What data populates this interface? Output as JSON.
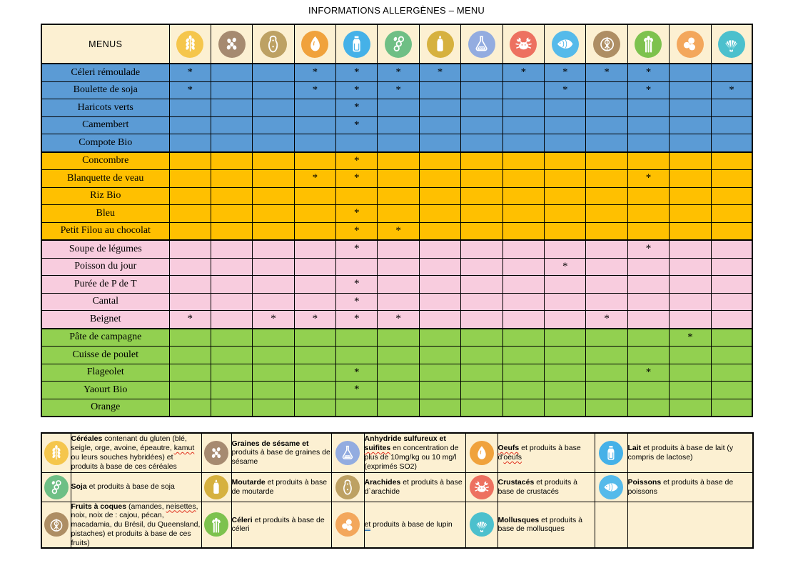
{
  "title": "INFORMATIONS ALLERGÈNES – MENU",
  "table": {
    "header_label": "MENUS",
    "mark_symbol": "*",
    "group_colors": {
      "blue": "#5B9BD5",
      "orange": "#FFC000",
      "pink": "#F8CCDE",
      "green": "#92D050"
    },
    "header_background": "#FCF0D2",
    "columns": [
      {
        "icon": "wheat-icon",
        "allergen": "gluten",
        "color": "#F5C64C"
      },
      {
        "icon": "sesame-icon",
        "allergen": "sesame",
        "color": "#A68A70"
      },
      {
        "icon": "peanut-icon",
        "allergen": "arachides",
        "color": "#BDA163"
      },
      {
        "icon": "egg-icon",
        "allergen": "oeufs",
        "color": "#F0A23C"
      },
      {
        "icon": "milk-bottle-icon",
        "allergen": "lait",
        "color": "#45B1E8"
      },
      {
        "icon": "soy-icon",
        "allergen": "soja",
        "color": "#6FBF85"
      },
      {
        "icon": "mustard-bottle-icon",
        "allergen": "moutarde",
        "color": "#D6B13F"
      },
      {
        "icon": "flask-icon",
        "allergen": "sulfites",
        "color": "#93ACE0"
      },
      {
        "icon": "crab-icon",
        "allergen": "crustaces",
        "color": "#ED7160"
      },
      {
        "icon": "fish-icon",
        "allergen": "poissons",
        "color": "#55BAEA"
      },
      {
        "icon": "walnut-icon",
        "allergen": "fruits-a-coques",
        "color": "#AE8E64"
      },
      {
        "icon": "celery-icon",
        "allergen": "celeri",
        "color": "#7DC24E"
      },
      {
        "icon": "lupin-icon",
        "allergen": "lupin",
        "color": "#F3A75C"
      },
      {
        "icon": "shell-icon",
        "allergen": "mollusques",
        "color": "#4CC0CD"
      }
    ],
    "rows": [
      {
        "label": "Céleri rémoulade",
        "group": "blue",
        "marks": [
          1,
          4,
          5,
          6,
          7,
          9,
          10,
          11,
          12
        ]
      },
      {
        "label": "Boulette de soja",
        "group": "blue",
        "marks": [
          1,
          4,
          5,
          6,
          10,
          12,
          14
        ]
      },
      {
        "label": "Haricots verts",
        "group": "blue",
        "marks": [
          5
        ]
      },
      {
        "label": "Camembert",
        "group": "blue",
        "marks": [
          5
        ]
      },
      {
        "label": "Compote Bio",
        "group": "blue",
        "marks": []
      },
      {
        "label": "Concombre",
        "group": "orange",
        "marks": [
          5
        ]
      },
      {
        "label": "Blanquette de veau",
        "group": "orange",
        "marks": [
          4,
          5,
          12
        ]
      },
      {
        "label": "Riz Bio",
        "group": "orange",
        "marks": []
      },
      {
        "label": "Bleu",
        "group": "orange",
        "marks": [
          5
        ]
      },
      {
        "label": "Petit Filou au chocolat",
        "group": "orange",
        "marks": [
          5,
          6
        ]
      },
      {
        "label": "Soupe de légumes",
        "group": "pink",
        "marks": [
          5,
          12
        ]
      },
      {
        "label": "Poisson du jour",
        "group": "pink",
        "marks": [
          10
        ]
      },
      {
        "label": "Purée de P de T",
        "group": "pink",
        "marks": [
          5
        ]
      },
      {
        "label": "Cantal",
        "group": "pink",
        "marks": [
          5
        ]
      },
      {
        "label": "Beignet",
        "group": "pink",
        "marks": [
          1,
          3,
          4,
          5,
          6,
          11
        ]
      },
      {
        "label": "Pâte de campagne",
        "group": "green",
        "marks": [
          13
        ]
      },
      {
        "label": "Cuisse de poulet",
        "group": "green",
        "marks": []
      },
      {
        "label": "Flageolet",
        "group": "green",
        "marks": [
          5,
          12
        ]
      },
      {
        "label": "Yaourt Bio",
        "group": "green",
        "marks": [
          5
        ]
      },
      {
        "label": "Orange",
        "group": "green",
        "marks": []
      }
    ]
  },
  "legend": {
    "rows": [
      [
        {
          "icon": "wheat-icon",
          "color": "#F5C64C",
          "segments": [
            {
              "t": "Céréales",
              "b": 1
            },
            {
              "t": " contenant du gluten (blé, seigle, orge, avoine, épeautre, "
            },
            {
              "t": "kamut",
              "u": "red"
            },
            {
              "t": " ou leurs souches hybridées) et produits à base de ces céréales"
            }
          ]
        },
        {
          "icon": "sesame-icon",
          "color": "#A68A70",
          "segments": [
            {
              "t": "Graines de sésame et",
              "b": 1
            },
            {
              "t": " produits à base de graines de sésame"
            }
          ]
        },
        {
          "icon": "flask-icon",
          "color": "#93ACE0",
          "segments": [
            {
              "t": "Anhydride sulfureux et ",
              "b": 1
            },
            {
              "t": "suifites",
              "b": 1,
              "u": "red"
            },
            {
              "t": " en concentration de plus de 10mg/kg ou 10 mg/l (exprimés SO2)"
            }
          ]
        },
        {
          "icon": "egg-icon",
          "color": "#F0A23C",
          "segments": [
            {
              "t": "Oeufs",
              "b": 1,
              "u": "red"
            },
            {
              "t": " et produits à base d'"
            },
            {
              "t": "oeufs",
              "u": "red"
            }
          ]
        },
        {
          "icon": "milk-bottle-icon",
          "color": "#45B1E8",
          "segments": [
            {
              "t": "Lait",
              "b": 1
            },
            {
              "t": " et produits à base de lait (y compris de lactose)"
            }
          ]
        }
      ],
      [
        {
          "icon": "soy-icon",
          "color": "#6FBF85",
          "segments": [
            {
              "t": "Soja",
              "b": 1
            },
            {
              "t": " et produits à base de soja"
            }
          ]
        },
        {
          "icon": "mustard-bottle-icon",
          "color": "#D6B13F",
          "segments": [
            {
              "t": "Moutarde",
              "b": 1
            },
            {
              "t": " et produits à base de moutarde"
            }
          ]
        },
        {
          "icon": "peanut-icon",
          "color": "#BDA163",
          "segments": [
            {
              "t": "Arachides",
              "b": 1
            },
            {
              "t": " et produits à base d`arachide"
            }
          ]
        },
        {
          "icon": "crab-icon",
          "color": "#ED7160",
          "segments": [
            {
              "t": "Crustacés",
              "b": 1
            },
            {
              "t": " et produits à base de crustacés"
            }
          ]
        },
        {
          "icon": "fish-icon",
          "color": "#55BAEA",
          "segments": [
            {
              "t": "Poissons",
              "b": 1
            },
            {
              "t": " et produits à base de poissons"
            }
          ]
        }
      ],
      [
        {
          "icon": "walnut-icon",
          "color": "#AE8E64",
          "segments": [
            {
              "t": "Fruits à coques",
              "b": 1
            },
            {
              "t": " (amandes, "
            },
            {
              "t": "neisettes",
              "u": "red"
            },
            {
              "t": ", noix, noix de : cajou, pécan, macadamia, du Brésil, du Queensland, pistaches) et produits à base de ces fruits)"
            }
          ]
        },
        {
          "icon": "celery-icon",
          "color": "#7DC24E",
          "segments": [
            {
              "t": "Céleri",
              "b": 1
            },
            {
              "t": " et produits à base de céleri"
            }
          ]
        },
        {
          "icon": "lupin-icon",
          "color": "#F3A75C",
          "segments": [
            {
              "t": "et",
              "u": "blue"
            },
            {
              "t": " produits à base de lupin"
            }
          ]
        },
        {
          "icon": "shell-icon",
          "color": "#4CC0CD",
          "segments": [
            {
              "t": "Mollusques",
              "b": 1
            },
            {
              "t": " et produits à base de mollusques"
            }
          ]
        },
        null
      ]
    ]
  }
}
